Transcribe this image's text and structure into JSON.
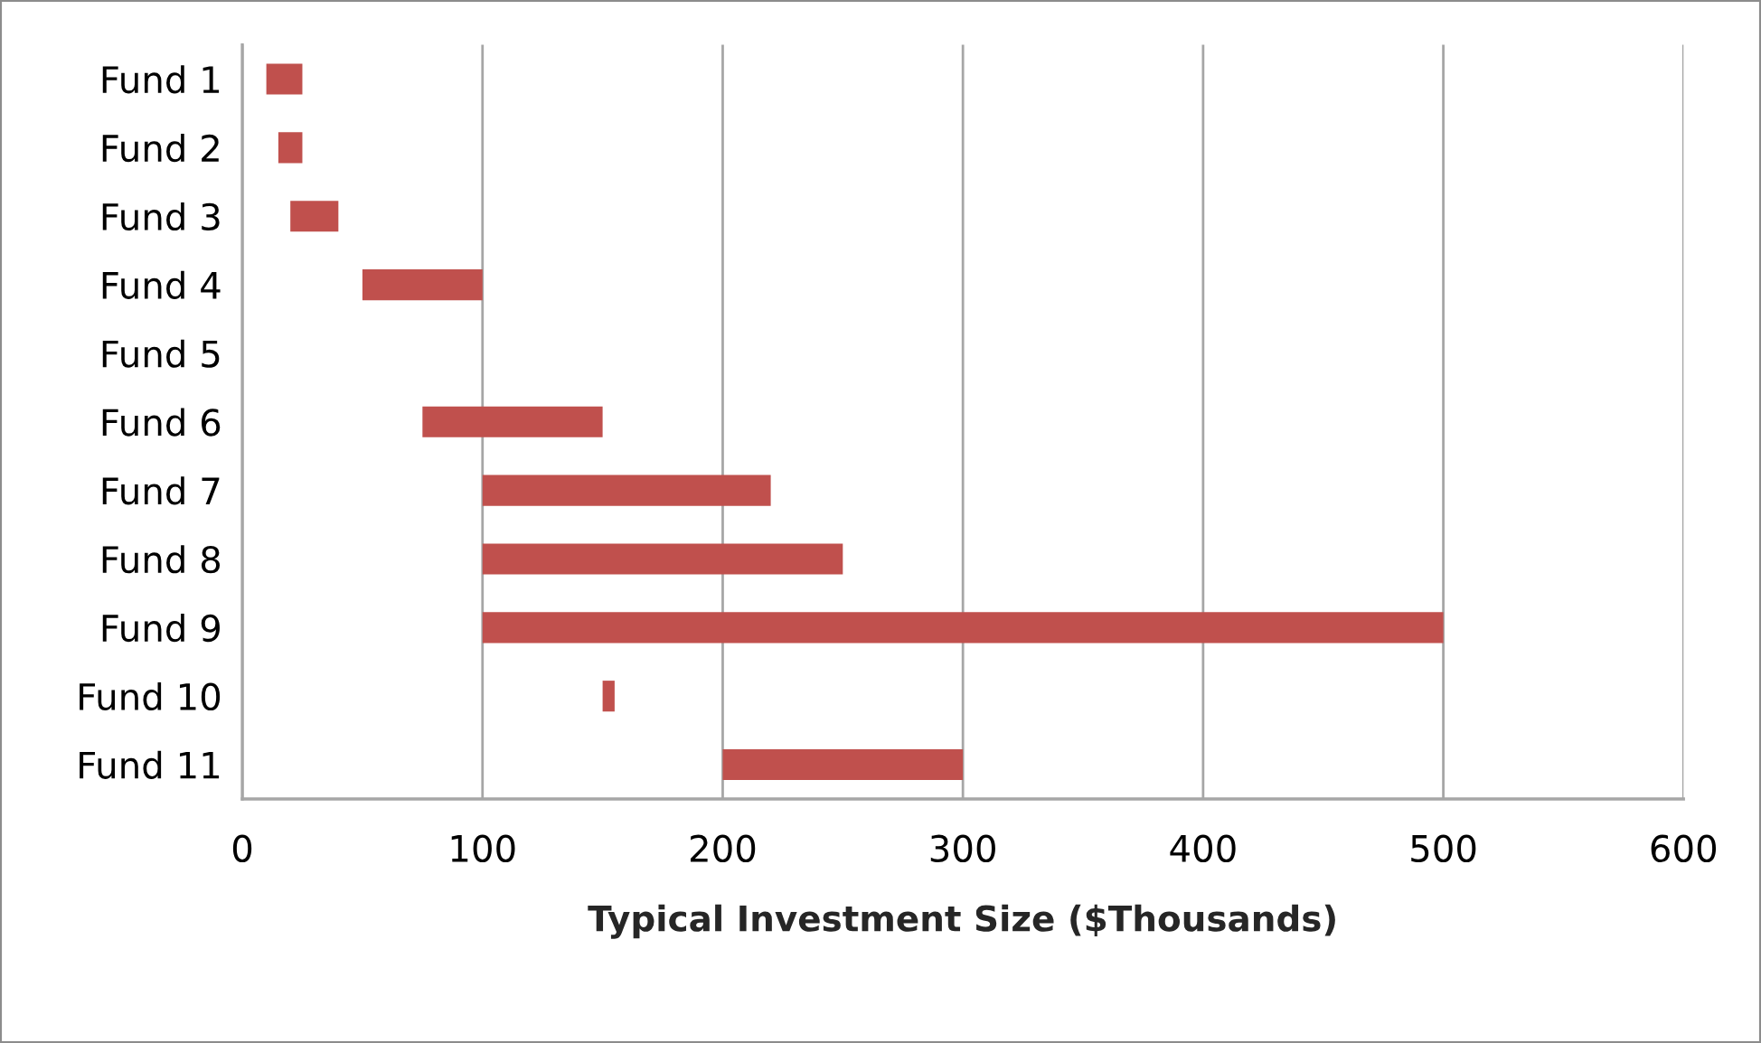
{
  "chart_data": {
    "type": "bar",
    "orientation": "horizontal",
    "xlabel": "Typical Investment Size ($Thousands)",
    "categories": [
      "Fund 1",
      "Fund 2",
      "Fund 3",
      "Fund 4",
      "Fund 5",
      "Fund 6",
      "Fund 7",
      "Fund 8",
      "Fund 9",
      "Fund 10",
      "Fund 11"
    ],
    "base": [
      10,
      15,
      20,
      50,
      null,
      75,
      100,
      100,
      100,
      150,
      200
    ],
    "values": [
      15,
      10,
      20,
      50,
      null,
      75,
      120,
      150,
      400,
      5,
      100
    ],
    "color": "#c0504d",
    "xlim": [
      0,
      600
    ],
    "xticks": [
      0,
      100,
      200,
      300,
      400,
      500,
      600
    ],
    "grid": "x"
  }
}
